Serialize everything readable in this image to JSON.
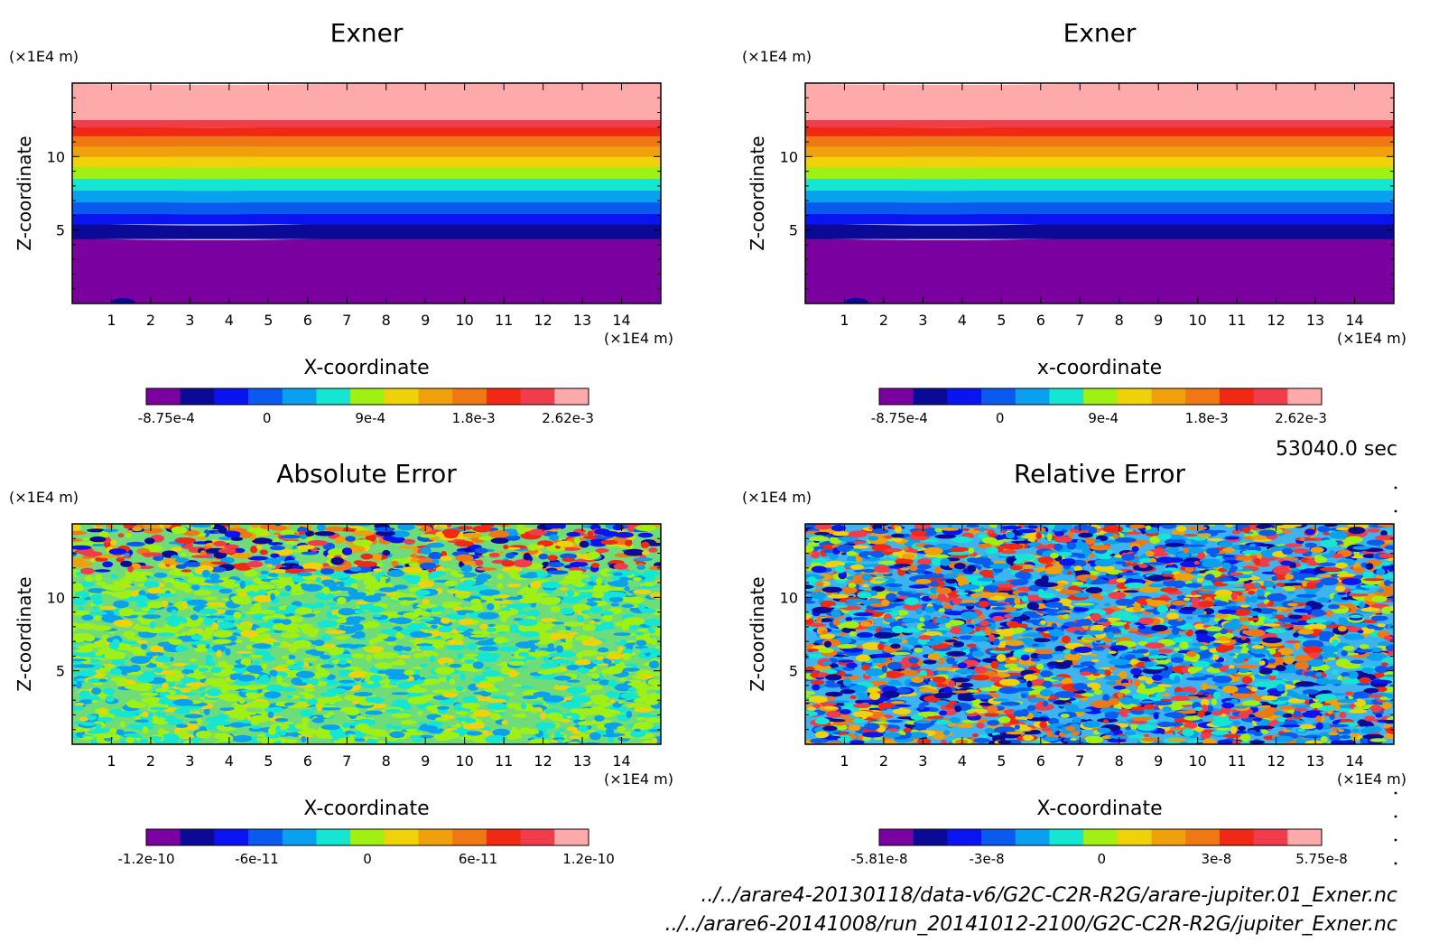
{
  "figure": {
    "time_label": "53040.0 sec",
    "file_lines": [
      "../../arare4-20130118/data-v6/G2C-C2R-R2G/arare-jupiter.01_Exner.nc",
      "../../arare6-20141008/run_20141012-2100/G2C-C2R-R2G/jupiter_Exner.nc"
    ]
  },
  "palette": [
    "#7b00a0",
    "#0a0a96",
    "#0a14f0",
    "#0a5af0",
    "#0aa0f0",
    "#14e6d2",
    "#a0f014",
    "#f0d20a",
    "#f0a00a",
    "#f07814",
    "#f02814",
    "#f03c4b",
    "#ffaaaa"
  ],
  "chart_data": [
    {
      "id": "exner-a",
      "type": "heatmap",
      "title": "Exner",
      "xlabel": "X-coordinate",
      "ylabel": "Z-coordinate",
      "x_unit": "(×1E4 m)",
      "y_unit": "(×1E4 m)",
      "xlim": [
        0,
        15
      ],
      "ylim": [
        0,
        15
      ],
      "x_ticks": [
        1,
        2,
        3,
        4,
        5,
        6,
        7,
        8,
        9,
        10,
        11,
        12,
        13,
        14
      ],
      "y_ticks": [
        5,
        10
      ],
      "pattern": "layered",
      "colorbar": {
        "min": -0.00105,
        "max": 0.0028,
        "labels": [
          {
            "value": -0.000875,
            "text": "-8.75e-4"
          },
          {
            "value": 0,
            "text": "0"
          },
          {
            "value": 0.0009,
            "text": "9e-4"
          },
          {
            "value": 0.0018,
            "text": "1.8e-3"
          },
          {
            "value": 0.00262,
            "text": "2.62e-3"
          }
        ]
      },
      "level_boundaries_z": [
        4.5,
        5.5,
        6.2,
        7.0,
        7.8,
        8.6,
        9.4,
        10.1,
        10.8,
        11.5,
        12.1,
        12.6
      ]
    },
    {
      "id": "exner-b",
      "type": "heatmap",
      "title": "Exner",
      "xlabel": "x-coordinate",
      "ylabel": "Z-coordinate",
      "x_unit": "(×1E4 m)",
      "y_unit": "(×1E4 m)",
      "xlim": [
        0,
        15
      ],
      "ylim": [
        0,
        15
      ],
      "x_ticks": [
        1,
        2,
        3,
        4,
        5,
        6,
        7,
        8,
        9,
        10,
        11,
        12,
        13,
        14
      ],
      "y_ticks": [
        5,
        10
      ],
      "pattern": "layered",
      "colorbar": {
        "min": -0.00105,
        "max": 0.0028,
        "labels": [
          {
            "value": -0.000875,
            "text": "-8.75e-4"
          },
          {
            "value": 0,
            "text": "0"
          },
          {
            "value": 0.0009,
            "text": "9e-4"
          },
          {
            "value": 0.0018,
            "text": "1.8e-3"
          },
          {
            "value": 0.00262,
            "text": "2.62e-3"
          }
        ]
      },
      "level_boundaries_z": [
        4.5,
        5.5,
        6.2,
        7.0,
        7.8,
        8.6,
        9.4,
        10.1,
        10.8,
        11.5,
        12.1,
        12.6
      ]
    },
    {
      "id": "abs-err",
      "type": "heatmap",
      "title": "Absolute Error",
      "xlabel": "X-coordinate",
      "ylabel": "Z-coordinate",
      "x_unit": "(×1E4 m)",
      "y_unit": "(×1E4 m)",
      "xlim": [
        0,
        15
      ],
      "ylim": [
        0,
        15
      ],
      "x_ticks": [
        1,
        2,
        3,
        4,
        5,
        6,
        7,
        8,
        9,
        10,
        11,
        12,
        13,
        14
      ],
      "y_ticks": [
        5,
        10
      ],
      "pattern": "noise-abs",
      "colorbar": {
        "min": -1.2e-10,
        "max": 1.2e-10,
        "labels": [
          {
            "value": -1.2e-10,
            "text": "-1.2e-10"
          },
          {
            "value": -6e-11,
            "text": "-6e-11"
          },
          {
            "value": 0,
            "text": "0"
          },
          {
            "value": 6e-11,
            "text": "6e-11"
          },
          {
            "value": 1.2e-10,
            "text": "1.2e-10"
          }
        ]
      }
    },
    {
      "id": "rel-err",
      "type": "heatmap",
      "title": "Relative Error",
      "xlabel": "X-coordinate",
      "ylabel": "Z-coordinate",
      "x_unit": "(×1E4 m)",
      "y_unit": "(×1E4 m)",
      "xlim": [
        0,
        15
      ],
      "ylim": [
        0,
        15
      ],
      "x_ticks": [
        1,
        2,
        3,
        4,
        5,
        6,
        7,
        8,
        9,
        10,
        11,
        12,
        13,
        14
      ],
      "y_ticks": [
        5,
        10
      ],
      "pattern": "noise-rel",
      "colorbar": {
        "min": -5.81e-08,
        "max": 5.75e-08,
        "labels": [
          {
            "value": -5.81e-08,
            "text": "-5.81e-8"
          },
          {
            "value": -3e-08,
            "text": "-3e-8"
          },
          {
            "value": 0,
            "text": "0"
          },
          {
            "value": 3e-08,
            "text": "3e-8"
          },
          {
            "value": 5.75e-08,
            "text": "5.75e-8"
          }
        ]
      }
    }
  ]
}
